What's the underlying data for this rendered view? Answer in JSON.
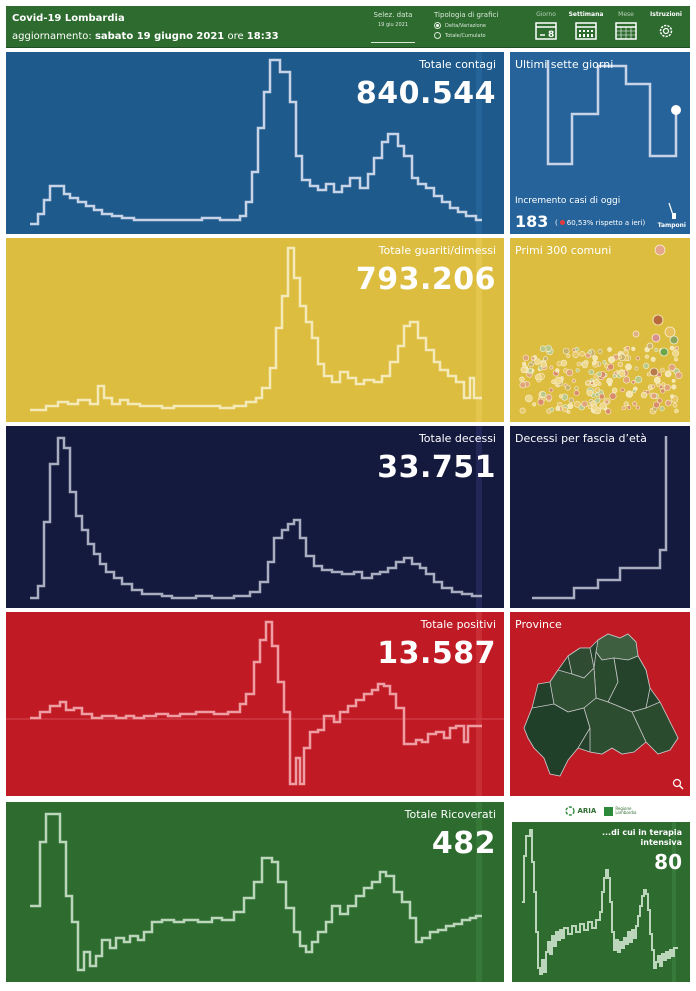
{
  "header": {
    "title": "Covid-19 Lombardia",
    "update_prefix": "aggiornamento: ",
    "update_date": "sabato 19 giugno 2021",
    "update_mid": " ore ",
    "update_time": "18:33",
    "date_selector_label": "Selez. data",
    "date_selector_value": "19 giu 2021",
    "chart_type_label": "Tipologia di grafici",
    "chart_type_options": [
      "Delta/Variazione",
      "Totale/Cumulato"
    ],
    "chart_type_selected": "Delta/Variazione",
    "nav": [
      {
        "label": "Giorno",
        "icon": "calendar-day-icon",
        "day": "8"
      },
      {
        "label": "Settimana",
        "icon": "calendar-week-icon"
      },
      {
        "label": "Mese",
        "icon": "calendar-month-icon"
      },
      {
        "label": "Istruzioni",
        "icon": "gear-icon"
      }
    ],
    "nav_selected": "Settimana"
  },
  "panels": {
    "contagi": {
      "title": "Totale contagi",
      "value": "840.544",
      "color": "#1f5a8c"
    },
    "guariti": {
      "title": "Totale guariti/dimessi",
      "value": "793.206",
      "color": "#dcbd3f"
    },
    "decessi": {
      "title": "Totale decessi",
      "value": "33.751",
      "color": "#14193e"
    },
    "positivi": {
      "title": "Totale positivi",
      "value": "13.587",
      "color": "#c01b25"
    },
    "ricoverati": {
      "title": "Totale Ricoverati",
      "value": "482",
      "color": "#2d6b2f"
    }
  },
  "side": {
    "seven_days": {
      "title": "Ultimi sette giorni",
      "increment_label": "Incremento casi di oggi",
      "increment_value": "183",
      "increment_note": "60,53% rispetto a  ieri",
      "increment_note_prefix": "(",
      "increment_note_suffix": ")",
      "tamponi_label": "Tamponi",
      "tamponi_icon": "test-swab-icon"
    },
    "comuni": {
      "title": "Primi 300 comuni"
    },
    "age": {
      "title": "Decessi per fascia d’età"
    },
    "province": {
      "title": "Province",
      "zoom_icon": "zoom-icon"
    },
    "intensive": {
      "title": "...di cui in terapia intensiva",
      "value": "80"
    }
  },
  "logos": {
    "aria": "ARIA",
    "regione": [
      "Regione",
      "Lombardia"
    ]
  }
}
